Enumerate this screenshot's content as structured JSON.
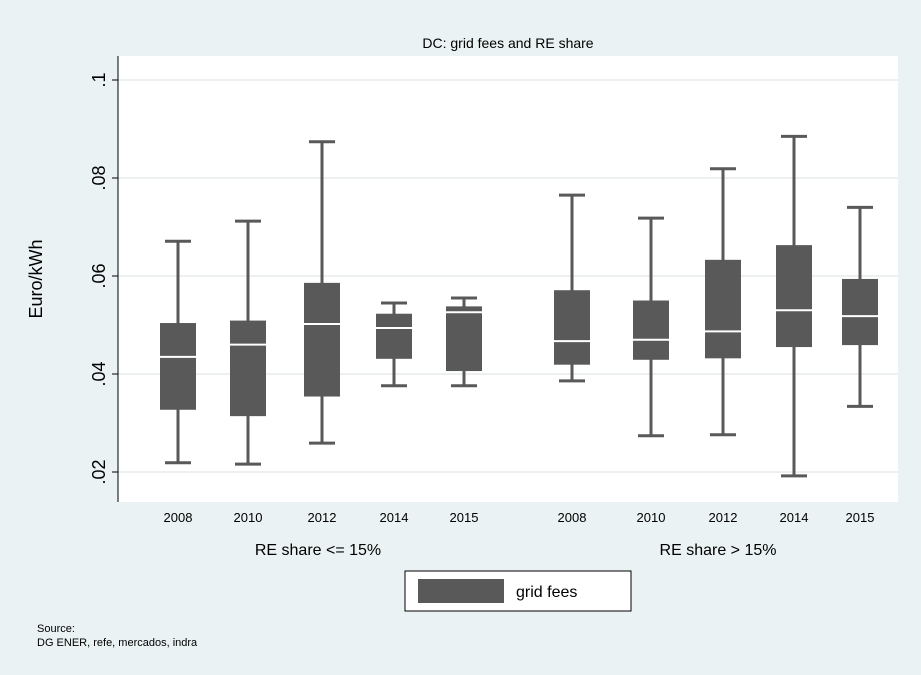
{
  "chart_data": {
    "type": "box",
    "title": "DC: grid fees and RE share",
    "ylabel": "Euro/kWh",
    "ylim": [
      0.015,
      0.105
    ],
    "yticks": [
      0.02,
      0.04,
      0.06,
      0.08,
      0.1
    ],
    "ytick_labels": [
      ".02",
      ".04",
      ".06",
      ".08",
      ".1"
    ],
    "grid": true,
    "colors": {
      "box": "#595959",
      "median": "#ffffff",
      "plot_bg": "#ffffff",
      "page_bg": "#eaf2f3",
      "grid": "#d9e2e3"
    },
    "groups": [
      {
        "label": "RE share <= 15%",
        "boxes": [
          {
            "category": "2008",
            "min": 0.0219,
            "q1": 0.0327,
            "median": 0.0435,
            "q3": 0.0504,
            "max": 0.0671
          },
          {
            "category": "2010",
            "min": 0.0216,
            "q1": 0.0314,
            "median": 0.046,
            "q3": 0.0509,
            "max": 0.0712
          },
          {
            "category": "2012",
            "min": 0.0259,
            "q1": 0.0354,
            "median": 0.0502,
            "q3": 0.0586,
            "max": 0.0874
          },
          {
            "category": "2014",
            "min": 0.0376,
            "q1": 0.0431,
            "median": 0.0494,
            "q3": 0.0523,
            "max": 0.0545
          },
          {
            "category": "2015",
            "min": 0.0376,
            "q1": 0.0406,
            "median": 0.0526,
            "q3": 0.0538,
            "max": 0.0555
          }
        ]
      },
      {
        "label": "RE share > 15%",
        "boxes": [
          {
            "category": "2008",
            "min": 0.0386,
            "q1": 0.0419,
            "median": 0.0467,
            "q3": 0.0571,
            "max": 0.0765
          },
          {
            "category": "2010",
            "min": 0.0274,
            "q1": 0.0429,
            "median": 0.047,
            "q3": 0.055,
            "max": 0.0718
          },
          {
            "category": "2012",
            "min": 0.0276,
            "q1": 0.0432,
            "median": 0.0487,
            "q3": 0.0633,
            "max": 0.0819
          },
          {
            "category": "2014",
            "min": 0.0192,
            "q1": 0.0455,
            "median": 0.053,
            "q3": 0.0663,
            "max": 0.0885
          },
          {
            "category": "2015",
            "min": 0.0334,
            "q1": 0.0459,
            "median": 0.0518,
            "q3": 0.0594,
            "max": 0.074
          }
        ]
      }
    ],
    "legend": {
      "entries": [
        "grid fees"
      ],
      "placement": "bottom-center"
    }
  },
  "source": {
    "line1": "Source:",
    "line2": "DG ENER, refe, mercados, indra"
  }
}
